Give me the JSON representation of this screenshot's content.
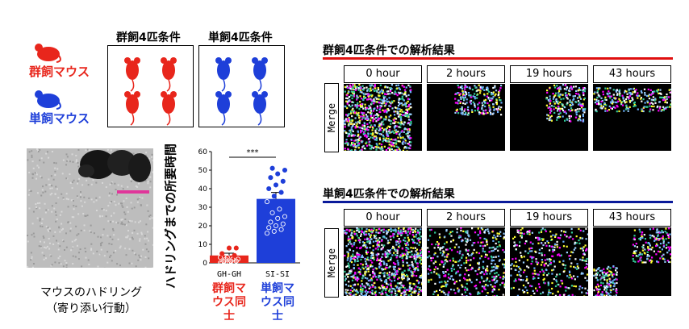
{
  "legend": {
    "group_label": "群飼マウス",
    "single_label": "単飼マウス",
    "group_color": "#e8261c",
    "single_color": "#1e3fd9"
  },
  "cages": {
    "group_title": "群飼4匹条件",
    "single_title": "単飼4匹条件"
  },
  "photo": {
    "caption_line1": "マウスのハドリング",
    "caption_line2": "（寄り添い行動）"
  },
  "chart_data": {
    "type": "bar",
    "ylabel": "ハドリングまでの所要時間",
    "ylim": [
      0,
      60
    ],
    "yticks": [
      0,
      10,
      20,
      30,
      40,
      50,
      60
    ],
    "categories": [
      "GH-GH",
      "SI-SI"
    ],
    "category_labels": [
      "群飼マウス同士",
      "単飼マウス同士"
    ],
    "values": [
      4,
      34.5
    ],
    "errors": [
      1.2,
      3.5
    ],
    "colors": [
      "#e8261c",
      "#1e3fd9"
    ],
    "points": [
      [
        0,
        0,
        0,
        0,
        0,
        1,
        1,
        1,
        2,
        2,
        2,
        3,
        3,
        4,
        5,
        8,
        8
      ],
      [
        16,
        17,
        18,
        19,
        20,
        21,
        22,
        24,
        25,
        27,
        29,
        33,
        36,
        38,
        40,
        42,
        44,
        46,
        48,
        50,
        51
      ]
    ],
    "significance": "***"
  },
  "analysis_group": {
    "title": "群飼4匹条件での解析結果",
    "line_color": "#e01010",
    "row_label": "Merge",
    "time_labels": [
      "0 hour",
      "2 hours",
      "19 hours",
      "43 hours"
    ]
  },
  "analysis_single": {
    "title": "単飼4匹条件での解析結果",
    "line_color": "#0a1a9a",
    "row_label": "Merge",
    "time_labels": [
      "0 hour",
      "2 hours",
      "19 hours",
      "43 hours"
    ]
  }
}
